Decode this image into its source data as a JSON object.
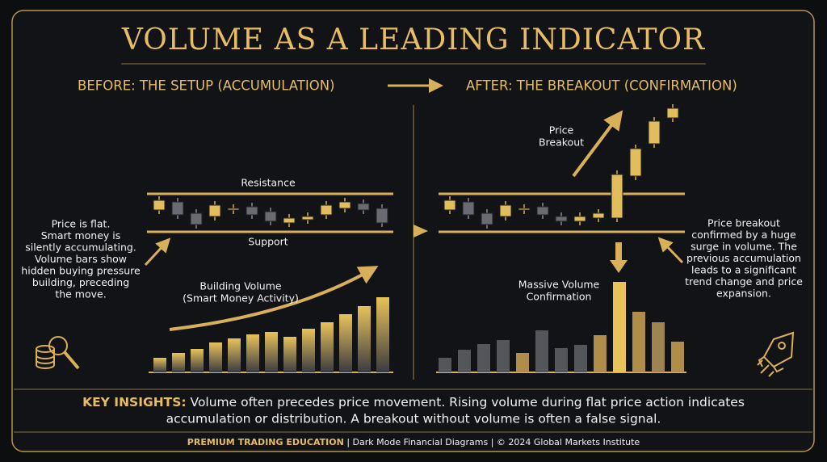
{
  "title": "VOLUME AS A LEADING INDICATOR",
  "before": {
    "heading": "BEFORE: THE SETUP (ACCUMULATION)",
    "resistance": "Resistance",
    "support": "Support",
    "note": [
      "Price is flat.",
      "Smart money is",
      "silently accumulating.",
      "Volume bars show",
      "hidden buying pressure",
      "building, preceding",
      "the move."
    ],
    "volume_label": [
      "Building Volume",
      "(Smart Money Activity)"
    ],
    "candles": [
      [
        2,
        14
      ],
      [
        12,
        -4
      ],
      [
        -2,
        -16
      ],
      [
        -6,
        8
      ],
      [
        2,
        4
      ],
      [
        6,
        -4
      ],
      [
        0,
        -12
      ],
      [
        -14,
        -8
      ],
      [
        -10,
        -6
      ],
      [
        -4,
        8
      ],
      [
        4,
        12
      ],
      [
        10,
        2
      ],
      [
        4,
        -14
      ]
    ],
    "volume": [
      18,
      24,
      29,
      37,
      42,
      47,
      50,
      44,
      54,
      62,
      72,
      82,
      93
    ]
  },
  "after": {
    "heading": "AFTER: THE BREAKOUT (CONFIRMATION)",
    "breakout_label": [
      "Price",
      "Breakout"
    ],
    "note": [
      "Price breakout",
      "confirmed by a huge",
      "surge in volume. The",
      "previous accumulation",
      "leads to a significant",
      "trend change and price",
      "expansion."
    ],
    "volume_label": [
      "Massive Volume",
      "Confirmation"
    ],
    "candles": [
      [
        2,
        14
      ],
      [
        12,
        -4
      ],
      [
        -2,
        -16
      ],
      [
        -6,
        8
      ],
      [
        2,
        4
      ],
      [
        6,
        -4
      ],
      [
        -6,
        -12
      ],
      [
        -12,
        -6
      ],
      [
        -8,
        -2
      ],
      [
        -8,
        46
      ],
      [
        44,
        78
      ],
      [
        84,
        112
      ],
      [
        116,
        128
      ]
    ],
    "volume": [
      18,
      28,
      35,
      40,
      24,
      52,
      30,
      34,
      46,
      112,
      75,
      62,
      38
    ],
    "volume_colors": [
      "#55565c",
      "#55565c",
      "#55565c",
      "#55565c",
      "#b08d4a",
      "#55565c",
      "#55565c",
      "#55565c",
      "#b08d4a",
      "#e8c25a",
      "#b08d4a",
      "#9d8450",
      "#b08d4a"
    ]
  },
  "insights": {
    "label": "KEY INSIGHTS:",
    "lines": [
      "Volume often precedes price movement. Rising volume during flat price action indicates",
      "accumulation or distribution. A breakout without volume is often a false signal."
    ]
  },
  "footer": {
    "brand": "PREMIUM TRADING EDUCATION",
    "rest": "| Dark Mode Financial Diagrams | © 2024 Global Markets Institute"
  }
}
